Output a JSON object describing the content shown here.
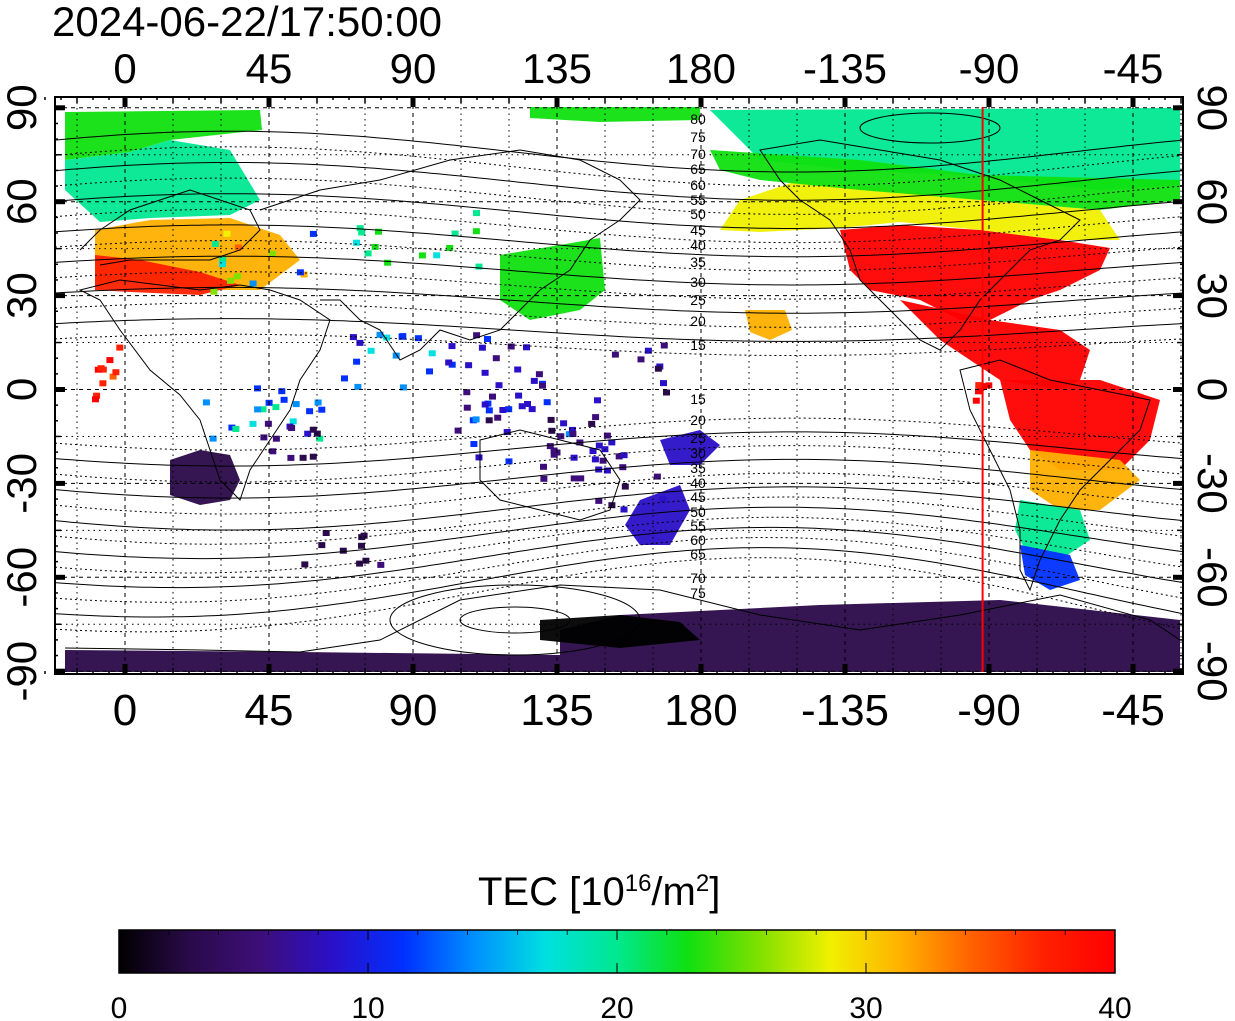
{
  "header": {
    "timestamp": "2024-06-22/17:50:00"
  },
  "map": {
    "top_lon_ticks": [
      "0",
      "45",
      "90",
      "135",
      "180",
      "-135",
      "-90",
      "-45"
    ],
    "bottom_lon_ticks": [
      "0",
      "45",
      "90",
      "135",
      "180",
      "-135",
      "-90",
      "-45"
    ],
    "left_lat_ticks": [
      "90",
      "60",
      "30",
      "0",
      "-30",
      "-60",
      "-90"
    ],
    "right_lat_ticks": [
      "90",
      "60",
      "30",
      "0",
      "-30",
      "-60",
      "-90"
    ],
    "north_contour_labels": [
      "80",
      "75",
      "70",
      "65",
      "60",
      "55",
      "50",
      "45",
      "40",
      "35",
      "30",
      "25",
      "20",
      "15"
    ],
    "south_contour_labels": [
      "15",
      "20",
      "25",
      "30",
      "35",
      "40",
      "45",
      "50",
      "55",
      "60",
      "65",
      "70",
      "75"
    ],
    "terminator_longitude": -92,
    "colors": {
      "terminator": "#ff0000",
      "frame": "#000000"
    }
  },
  "colorbar": {
    "label_main": "TEC  [10",
    "label_sup1": "16",
    "label_mid": "/m",
    "label_sup2": "2",
    "label_end": "]",
    "ticks": [
      "0",
      "10",
      "20",
      "30",
      "40"
    ],
    "min": 0,
    "max": 40,
    "palette": [
      "#000000",
      "#2a0a4a",
      "#3d0e7a",
      "#2a10c8",
      "#0030ff",
      "#0090ff",
      "#00e0e0",
      "#00e890",
      "#10e010",
      "#80e000",
      "#f0f000",
      "#ffb000",
      "#ff6000",
      "#ff2000",
      "#ff0000"
    ]
  }
}
